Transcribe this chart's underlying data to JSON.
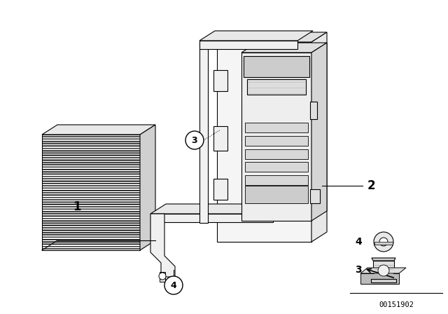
{
  "background_color": "#ffffff",
  "line_color": "#000000",
  "fig_width": 6.4,
  "fig_height": 4.48,
  "dpi": 100,
  "diagram_id": "00151902",
  "lw": 0.8
}
